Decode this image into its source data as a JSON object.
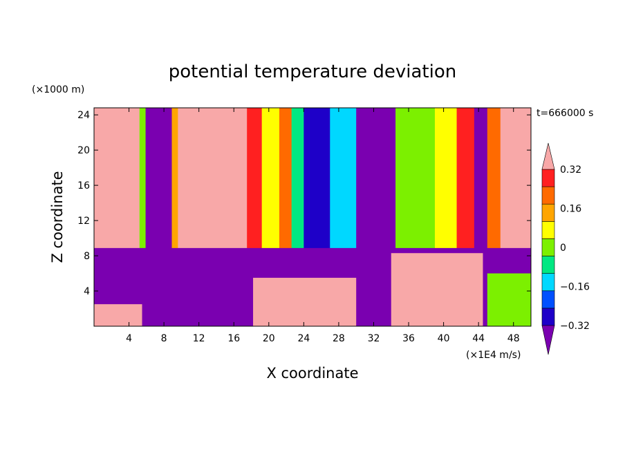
{
  "chart_data": {
    "type": "heatmap",
    "title": "potential temperature deviation",
    "xlabel": "X coordinate",
    "ylabel": "Z coordinate",
    "x_unit": "(×1E4 m/s)",
    "y_unit": "(×1000 m)",
    "time_label": "t=666000 s",
    "xlim": [
      0,
      50
    ],
    "ylim": [
      0,
      24.8
    ],
    "x_ticks": [
      4,
      8,
      12,
      16,
      20,
      24,
      28,
      32,
      36,
      40,
      44,
      48
    ],
    "y_ticks": [
      4,
      8,
      12,
      16,
      20,
      24
    ],
    "colorbar": {
      "levels": [
        -0.4,
        -0.32,
        -0.24,
        -0.16,
        -0.08,
        0,
        0.08,
        0.16,
        0.24,
        0.32,
        0.4
      ],
      "tick_labels": [
        "0.32",
        "0.16",
        "0",
        "−0.16",
        "−0.32"
      ],
      "tick_values": [
        0.32,
        0.16,
        0,
        -0.16,
        -0.32
      ],
      "colors": [
        "#7a00b0",
        "#1e00c8",
        "#0050ff",
        "#00d8ff",
        "#00e882",
        "#7cf000",
        "#ffff00",
        "#ffa500",
        "#ff6a00",
        "#ff2020",
        "#f8a8a8"
      ]
    },
    "upper_layer": {
      "z_range": [
        8.8,
        24.8
      ],
      "columns": [
        {
          "x": [
            0,
            5.2
          ],
          "value": 0.4
        },
        {
          "x": [
            5.2,
            5.9
          ],
          "value": 0.0
        },
        {
          "x": [
            5.9,
            8.9
          ],
          "value": -0.4
        },
        {
          "x": [
            8.9,
            9.6
          ],
          "value": 0.16
        },
        {
          "x": [
            9.6,
            17.5
          ],
          "value": 0.4
        },
        {
          "x": [
            17.5,
            19.2
          ],
          "value": 0.32
        },
        {
          "x": [
            19.2,
            21.2
          ],
          "value": 0.08
        },
        {
          "x": [
            21.2,
            22.6
          ],
          "value": 0.24
        },
        {
          "x": [
            22.6,
            24.0
          ],
          "value": -0.08
        },
        {
          "x": [
            24.0,
            27.0
          ],
          "value": -0.32
        },
        {
          "x": [
            27.0,
            30.0
          ],
          "value": -0.16
        },
        {
          "x": [
            30.0,
            34.5
          ],
          "value": -0.4
        },
        {
          "x": [
            34.5,
            39.0
          ],
          "value": 0.0
        },
        {
          "x": [
            39.0,
            41.5
          ],
          "value": 0.08
        },
        {
          "x": [
            41.5,
            43.5
          ],
          "value": 0.32
        },
        {
          "x": [
            43.5,
            45.0
          ],
          "value": -0.4
        },
        {
          "x": [
            45.0,
            46.5
          ],
          "value": 0.24
        },
        {
          "x": [
            46.5,
            50.0
          ],
          "value": 0.4
        }
      ]
    },
    "lower_layer": {
      "z_range": [
        0,
        8.8
      ],
      "dominant_value": -0.4,
      "regions": [
        {
          "x": [
            0,
            5.5
          ],
          "z": [
            0,
            2.5
          ],
          "value": 0.4
        },
        {
          "x": [
            18.2,
            30.0
          ],
          "z": [
            0,
            5.5
          ],
          "value": 0.4
        },
        {
          "x": [
            34.0,
            44.5
          ],
          "z": [
            0,
            8.3
          ],
          "value": 0.4
        },
        {
          "x": [
            45.0,
            50.0
          ],
          "z": [
            0,
            6.0
          ],
          "value": 0.0
        }
      ]
    }
  }
}
